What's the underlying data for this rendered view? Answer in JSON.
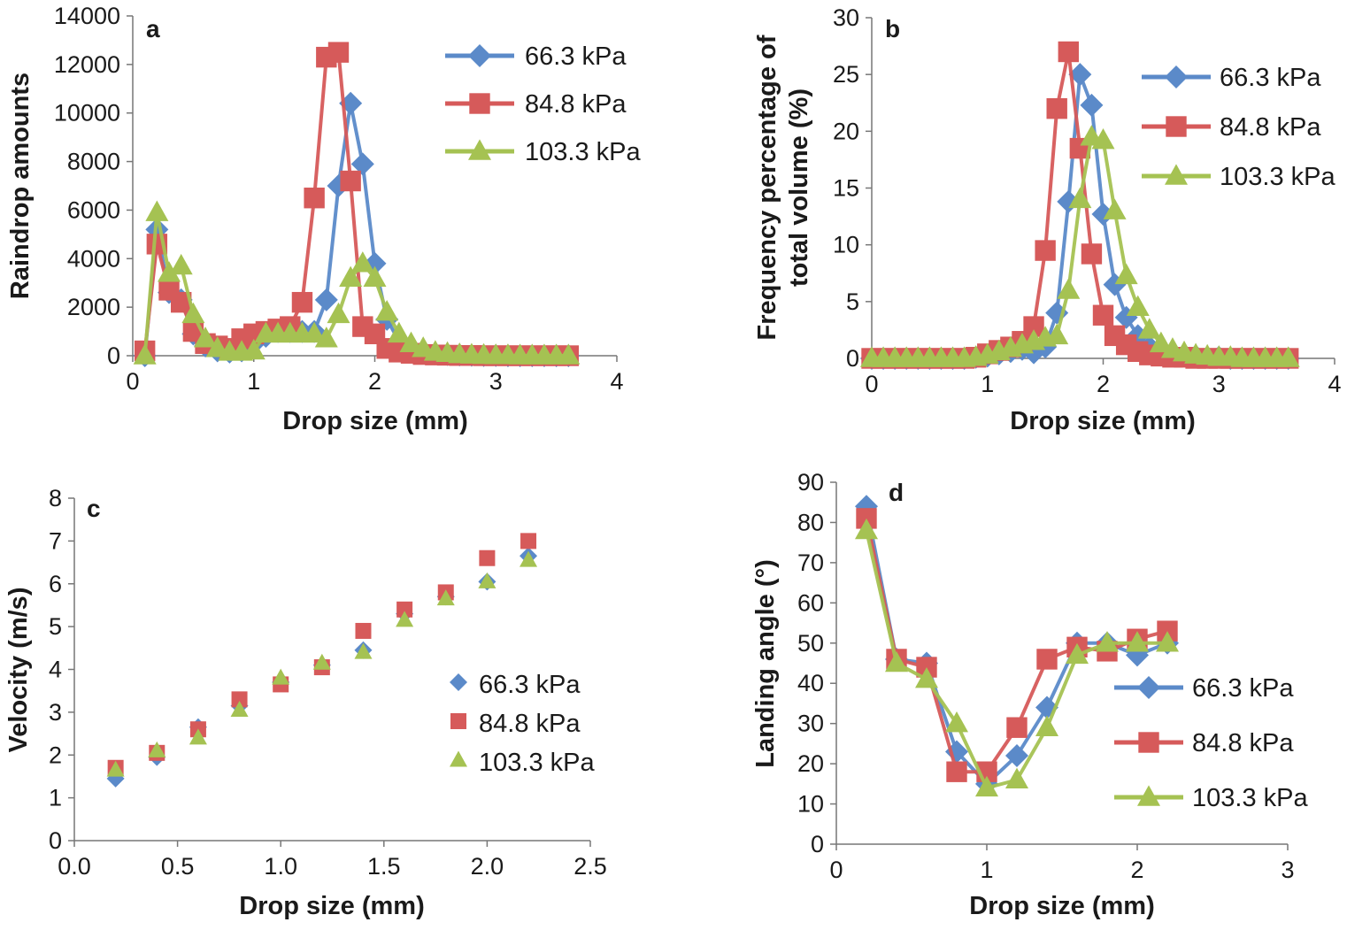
{
  "chart_data": [
    {
      "panel": "a",
      "type": "line",
      "xlabel": "Drop size (mm)",
      "ylabel": "Raindrop amounts",
      "xlim": [
        0,
        4
      ],
      "ylim": [
        0,
        14000
      ],
      "xticks": [
        "0",
        "1",
        "2",
        "3",
        "4"
      ],
      "yticks": [
        "0",
        "2000",
        "4000",
        "6000",
        "8000",
        "10000",
        "12000",
        "14000"
      ],
      "grid": false,
      "legend_position": "top-right",
      "series": [
        {
          "name": "66.3 kPa",
          "color": "#5b8ac9",
          "marker": "diamond",
          "x": [
            0.1,
            0.2,
            0.3,
            0.4,
            0.5,
            0.6,
            0.7,
            0.8,
            0.9,
            1.0,
            1.1,
            1.2,
            1.3,
            1.4,
            1.5,
            1.6,
            1.7,
            1.8,
            1.9,
            2.0,
            2.1,
            2.2,
            2.3,
            2.4,
            2.5,
            2.6,
            2.7,
            2.8,
            2.9,
            3.0,
            3.1,
            3.2,
            3.3,
            3.4,
            3.5,
            3.6
          ],
          "y": [
            0,
            5200,
            2600,
            2300,
            900,
            400,
            200,
            150,
            200,
            500,
            800,
            1000,
            1000,
            1000,
            1000,
            2300,
            7000,
            10400,
            7900,
            3800,
            1500,
            600,
            300,
            150,
            80,
            50,
            30,
            20,
            10,
            10,
            0,
            0,
            0,
            0,
            0,
            0
          ]
        },
        {
          "name": "84.8 kPa",
          "color": "#d65a5a",
          "marker": "square",
          "x": [
            0.1,
            0.2,
            0.3,
            0.4,
            0.5,
            0.6,
            0.7,
            0.8,
            0.9,
            1.0,
            1.1,
            1.2,
            1.3,
            1.4,
            1.5,
            1.6,
            1.7,
            1.8,
            1.9,
            2.0,
            2.1,
            2.2,
            2.3,
            2.4,
            2.5,
            2.6,
            2.7,
            2.8,
            2.9,
            3.0,
            3.1,
            3.2,
            3.3,
            3.4,
            3.5,
            3.6
          ],
          "y": [
            200,
            4600,
            2700,
            2200,
            1000,
            500,
            400,
            300,
            700,
            900,
            1000,
            1100,
            1200,
            2200,
            6500,
            12300,
            12500,
            7200,
            1200,
            900,
            300,
            150,
            100,
            50,
            30,
            20,
            10,
            10,
            0,
            0,
            0,
            0,
            0,
            0,
            0,
            0
          ]
        },
        {
          "name": "103.3 kPa",
          "color": "#a5c252",
          "marker": "triangle",
          "x": [
            0.1,
            0.2,
            0.3,
            0.4,
            0.5,
            0.6,
            0.7,
            0.8,
            0.9,
            1.0,
            1.1,
            1.2,
            1.3,
            1.4,
            1.5,
            1.6,
            1.7,
            1.8,
            1.9,
            2.0,
            2.1,
            2.2,
            2.3,
            2.4,
            2.5,
            2.6,
            2.7,
            2.8,
            2.9,
            3.0,
            3.1,
            3.2,
            3.3,
            3.4,
            3.5,
            3.6
          ],
          "y": [
            0,
            5900,
            3400,
            3700,
            1700,
            700,
            300,
            150,
            150,
            200,
            900,
            900,
            900,
            900,
            900,
            700,
            1700,
            3200,
            3800,
            3200,
            1800,
            900,
            500,
            300,
            150,
            100,
            50,
            30,
            20,
            10,
            10,
            0,
            0,
            0,
            0,
            0
          ]
        }
      ]
    },
    {
      "panel": "b",
      "type": "line",
      "xlabel": "Drop size (mm)",
      "ylabel": [
        "Frequency percentage of",
        "total volume (%)"
      ],
      "xlim": [
        0,
        4
      ],
      "ylim": [
        0,
        30
      ],
      "xticks": [
        "0",
        "1",
        "2",
        "3",
        "4"
      ],
      "yticks": [
        "0",
        "5",
        "10",
        "15",
        "20",
        "25",
        "30"
      ],
      "grid": false,
      "legend_position": "top-right",
      "series": [
        {
          "name": "66.3 kPa",
          "color": "#5b8ac9",
          "marker": "diamond",
          "x": [
            0.0,
            0.1,
            0.2,
            0.3,
            0.4,
            0.5,
            0.6,
            0.7,
            0.8,
            0.9,
            1.0,
            1.1,
            1.2,
            1.3,
            1.4,
            1.5,
            1.6,
            1.7,
            1.8,
            1.9,
            2.0,
            2.1,
            2.2,
            2.3,
            2.4,
            2.5,
            2.6,
            2.7,
            2.8,
            2.9,
            3.0,
            3.1,
            3.2,
            3.3,
            3.4,
            3.5,
            3.6
          ],
          "y": [
            0,
            0,
            0,
            0,
            0,
            0,
            0,
            0,
            0,
            0.1,
            0.2,
            0.4,
            0.6,
            0.8,
            0.5,
            1.0,
            4.0,
            13.8,
            25.0,
            22.3,
            12.7,
            6.5,
            3.6,
            2.0,
            1.0,
            0.6,
            0.4,
            0.3,
            0.2,
            0.1,
            0.1,
            0,
            0,
            0,
            0,
            0,
            0
          ]
        },
        {
          "name": "84.8 kPa",
          "color": "#d65a5a",
          "marker": "square",
          "x": [
            0.0,
            0.1,
            0.2,
            0.3,
            0.4,
            0.5,
            0.6,
            0.7,
            0.8,
            0.9,
            1.0,
            1.1,
            1.2,
            1.3,
            1.4,
            1.5,
            1.6,
            1.7,
            1.8,
            1.9,
            2.0,
            2.1,
            2.2,
            2.3,
            2.4,
            2.5,
            2.6,
            2.7,
            2.8,
            2.9,
            3.0,
            3.1,
            3.2,
            3.3,
            3.4,
            3.5,
            3.6
          ],
          "y": [
            0,
            0,
            0,
            0,
            0,
            0,
            0,
            0,
            0,
            0.1,
            0.4,
            0.7,
            1.0,
            1.5,
            2.8,
            9.5,
            22.0,
            27.0,
            18.5,
            9.2,
            3.8,
            2.0,
            1.2,
            0.6,
            0.3,
            0.2,
            0.1,
            0.1,
            0,
            0,
            0,
            0,
            0,
            0,
            0,
            0,
            0
          ]
        },
        {
          "name": "103.3 kPa",
          "color": "#a5c252",
          "marker": "triangle",
          "x": [
            0.0,
            0.1,
            0.2,
            0.3,
            0.4,
            0.5,
            0.6,
            0.7,
            0.8,
            0.9,
            1.0,
            1.1,
            1.2,
            1.3,
            1.4,
            1.5,
            1.6,
            1.7,
            1.8,
            1.9,
            2.0,
            2.1,
            2.2,
            2.3,
            2.4,
            2.5,
            2.6,
            2.7,
            2.8,
            2.9,
            3.0,
            3.1,
            3.2,
            3.3,
            3.4,
            3.5,
            3.6
          ],
          "y": [
            0,
            0,
            0,
            0,
            0,
            0,
            0,
            0,
            0,
            0.1,
            0.3,
            0.6,
            0.9,
            1.2,
            1.5,
            1.8,
            2.0,
            6.0,
            14.0,
            19.5,
            19.2,
            13.0,
            7.3,
            4.5,
            2.5,
            1.3,
            0.8,
            0.5,
            0.3,
            0.2,
            0.1,
            0.1,
            0,
            0,
            0,
            0,
            0
          ]
        }
      ]
    },
    {
      "panel": "c",
      "type": "scatter",
      "xlabel": "Drop size (mm)",
      "ylabel": "Velocity (m/s)",
      "xlim": [
        0,
        2.5
      ],
      "ylim": [
        0,
        8
      ],
      "xticks": [
        "0.0",
        "0.5",
        "1.0",
        "1.5",
        "2.0",
        "2.5"
      ],
      "yticks": [
        "0",
        "1",
        "2",
        "3",
        "4",
        "5",
        "6",
        "7",
        "8"
      ],
      "grid": false,
      "legend_position": "right",
      "series": [
        {
          "name": "66.3 kPa",
          "color": "#5b8ac9",
          "marker": "diamond",
          "x": [
            0.2,
            0.4,
            0.6,
            0.8,
            1.0,
            1.2,
            1.4,
            1.6,
            1.8,
            2.0,
            2.2
          ],
          "y": [
            1.45,
            1.95,
            2.65,
            3.15,
            3.7,
            4.1,
            4.45,
            5.3,
            5.7,
            6.05,
            6.65
          ]
        },
        {
          "name": "84.8 kPa",
          "color": "#d65a5a",
          "marker": "square",
          "x": [
            0.2,
            0.4,
            0.6,
            0.8,
            1.0,
            1.2,
            1.4,
            1.6,
            1.8,
            2.0,
            2.2
          ],
          "y": [
            1.7,
            2.05,
            2.6,
            3.3,
            3.65,
            4.05,
            4.9,
            5.4,
            5.8,
            6.6,
            7.0
          ]
        },
        {
          "name": "103.3 kPa",
          "color": "#a5c252",
          "marker": "triangle",
          "x": [
            0.2,
            0.4,
            0.6,
            0.8,
            1.0,
            1.2,
            1.4,
            1.6,
            1.8,
            2.0,
            2.2
          ],
          "y": [
            1.65,
            2.1,
            2.4,
            3.05,
            3.8,
            4.15,
            4.4,
            5.15,
            5.65,
            6.05,
            6.55
          ]
        }
      ]
    },
    {
      "panel": "d",
      "type": "line",
      "xlabel": "Drop size (mm)",
      "ylabel": "Landing angle (°)",
      "xlim": [
        0,
        3
      ],
      "ylim": [
        0,
        90
      ],
      "xticks": [
        "0",
        "1",
        "2",
        "3"
      ],
      "yticks": [
        "0",
        "10",
        "20",
        "30",
        "40",
        "50",
        "60",
        "70",
        "80",
        "90"
      ],
      "grid": false,
      "legend_position": "right",
      "series": [
        {
          "name": "66.3 kPa",
          "color": "#5b8ac9",
          "marker": "diamond",
          "x": [
            0.2,
            0.4,
            0.6,
            0.8,
            1.0,
            1.2,
            1.4,
            1.6,
            1.8,
            2.0,
            2.2
          ],
          "y": [
            84,
            46,
            45,
            23,
            15,
            22,
            34,
            50,
            50,
            47,
            50
          ]
        },
        {
          "name": "84.8 kPa",
          "color": "#d65a5a",
          "marker": "square",
          "x": [
            0.2,
            0.4,
            0.6,
            0.8,
            1.0,
            1.2,
            1.4,
            1.6,
            1.8,
            2.0,
            2.2
          ],
          "y": [
            81,
            46,
            44,
            18,
            18,
            29,
            46,
            49,
            48,
            51,
            53
          ]
        },
        {
          "name": "103.3 kPa",
          "color": "#a5c252",
          "marker": "triangle",
          "x": [
            0.2,
            0.4,
            0.6,
            0.8,
            1.0,
            1.2,
            1.4,
            1.6,
            1.8,
            2.0,
            2.2
          ],
          "y": [
            78,
            45,
            41,
            30,
            14,
            16,
            29,
            47,
            50,
            50,
            50
          ]
        }
      ]
    }
  ]
}
